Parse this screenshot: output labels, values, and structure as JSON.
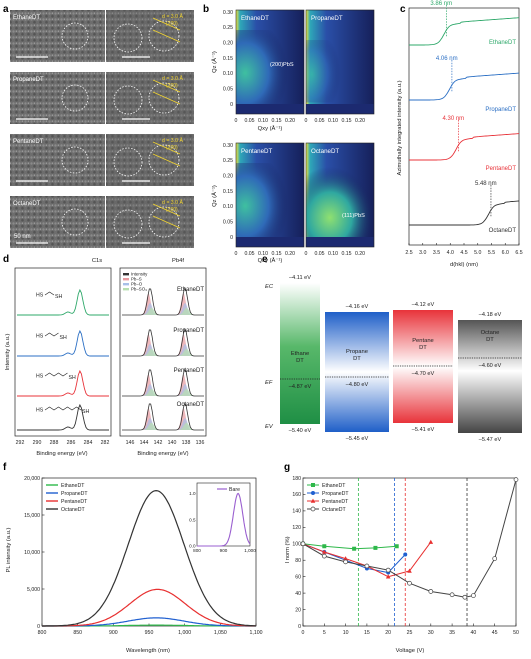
{
  "panels": {
    "a": {
      "letter": "a",
      "rows": [
        {
          "name": "EthaneDT",
          "d_label": "d = 3.0 Å",
          "plane": "(200)"
        },
        {
          "name": "PropaneDT",
          "d_label": "d = 3.0 Å",
          "plane": "(200)"
        },
        {
          "name": "PentaneDT",
          "d_label": "d = 3.0 Å",
          "plane": "(200)"
        },
        {
          "name": "OctaneDT",
          "d_label": "d = 3.0 Å",
          "plane": "(200)"
        }
      ],
      "scale_label": "50 nm"
    },
    "b": {
      "letter": "b",
      "maps": [
        "EthaneDT",
        "PropaneDT",
        "PentaneDT",
        "OctaneDT"
      ],
      "annot_top": "(200)PbS",
      "annot_bottom": "(111)PbS",
      "ylabel": "Qz (Å⁻¹)",
      "xlabel": "Qxy (Å⁻¹)",
      "yticks": [
        "0",
        "0.05",
        "0.10",
        "0.15",
        "0.20",
        "0.25",
        "0.30"
      ],
      "xticks": [
        "0",
        "0.05",
        "0.10",
        "0.15",
        "0.20"
      ]
    },
    "c": {
      "letter": "c",
      "ylabel": "Azimuthally integrated intensity (a.u.)",
      "xlabel": "d(hkl) (nm)",
      "xticks": [
        "2.5",
        "3.0",
        "3.5",
        "4.0",
        "4.5",
        "5.0",
        "5.5",
        "6.0",
        "6.5"
      ],
      "curves": [
        {
          "name": "EthaneDT",
          "peak": "3.86 nm",
          "color": "#2ea86a"
        },
        {
          "name": "PropaneDT",
          "peak": "4.06 nm",
          "color": "#2b6fc4"
        },
        {
          "name": "PentaneDT",
          "peak": "4.30 nm",
          "color": "#e8333a"
        },
        {
          "name": "OctaneDT",
          "peak": "5.48 nm",
          "color": "#333333"
        }
      ]
    },
    "d": {
      "letter": "d",
      "c1s_title": "C1s",
      "pb4f_title": "Pb4f",
      "ylabel": "Intensity (a.u.)",
      "xlabel": "Binding energy (eV)",
      "c1s_xticks": [
        "292",
        "290",
        "288",
        "286",
        "284",
        "282"
      ],
      "pb4f_xticks": [
        "146",
        "144",
        "142",
        "140",
        "138",
        "136"
      ],
      "samples": [
        "EthaneDT",
        "PropaneDT",
        "PentaneDT",
        "OctaneDT"
      ],
      "hs": "HS",
      "sh": "SH",
      "legend": [
        "Intensity",
        "Pb–S",
        "Pb–O",
        "Pb–SO₃"
      ]
    },
    "e": {
      "letter": "e",
      "ec": "EC",
      "ef": "EF",
      "ev": "EV",
      "bars": [
        {
          "name1": "Ethane",
          "name2": "DT",
          "ec": "–4.11 eV",
          "ef": "–4.87 eV",
          "ev": "–5.40 eV",
          "color": "#3aaa5a"
        },
        {
          "name1": "Propane",
          "name2": "DT",
          "ec": "–4.16 eV",
          "ef": "–4.80 eV",
          "ev": "–5.45 eV",
          "color": "#2b72c8"
        },
        {
          "name1": "Pentane",
          "name2": "DT",
          "ec": "–4.12 eV",
          "ef": "–4.70 eV",
          "ev": "–5.41 eV",
          "color": "#e8333a"
        },
        {
          "name1": "Octane",
          "name2": "DT",
          "ec": "–4.18 eV",
          "ef": "–4.60 eV",
          "ev": "–5.47 eV",
          "color": "#666666"
        }
      ]
    },
    "f": {
      "letter": "f",
      "ylabel": "PL intensity (a.u.)",
      "xlabel": "Wavelength (nm)",
      "inset_label": "Bare",
      "legend": [
        "EthaneDT",
        "PropaneDT",
        "PentaneDT",
        "OctaneDT"
      ]
    },
    "g": {
      "letter": "g",
      "ylabel": "I norm (%)",
      "xlabel": "Voltage (V)",
      "legend": [
        "EthaneDT",
        "PropaneDT",
        "PentaneDT",
        "OctaneDT"
      ]
    }
  },
  "chart_data": [
    {
      "type": "line",
      "panel": "f",
      "xlabel": "Wavelength (nm)",
      "ylabel": "PL intensity (a.u.)",
      "xlim": [
        800,
        1100
      ],
      "ylim": [
        0,
        20000
      ],
      "xticks": [
        800,
        850,
        900,
        950,
        1000,
        1050,
        1100
      ],
      "yticks": [
        0,
        5000,
        10000,
        15000,
        20000
      ],
      "series": [
        {
          "name": "EthaneDT",
          "color": "#2eb84a",
          "peak": 120,
          "center": 960,
          "width": 55
        },
        {
          "name": "PropaneDT",
          "color": "#1f5fd0",
          "peak": 1100,
          "center": 960,
          "width": 55
        },
        {
          "name": "PentaneDT",
          "color": "#e83030",
          "peak": 4950,
          "center": 962,
          "width": 55
        },
        {
          "name": "OctaneDT",
          "color": "#333333",
          "peak": 18300,
          "center": 960,
          "width": 55
        }
      ],
      "inset": {
        "name": "Bare",
        "color": "#9a5fd0",
        "xlim": [
          800,
          1000
        ],
        "ylim": [
          0,
          1.2
        ],
        "xticks": [
          800,
          900,
          1000
        ],
        "yticks": [
          0,
          0.5,
          1.0
        ],
        "center": 955,
        "width": 25,
        "peak": 1.0
      }
    },
    {
      "type": "line",
      "panel": "g",
      "xlabel": "Voltage (V)",
      "ylabel": "I norm (%)",
      "xlim": [
        0,
        50
      ],
      "ylim": [
        0,
        180
      ],
      "xticks": [
        0,
        5,
        10,
        15,
        20,
        25,
        30,
        35,
        40,
        45,
        50
      ],
      "yticks": [
        0,
        20,
        40,
        60,
        80,
        100,
        120,
        140,
        160,
        180
      ],
      "vlines": [
        {
          "x": 13,
          "color": "#2eb84a"
        },
        {
          "x": 21.5,
          "color": "#1f5fd0"
        },
        {
          "x": 24,
          "color": "#e83030"
        },
        {
          "x": 38.5,
          "color": "#333333"
        }
      ],
      "series": [
        {
          "name": "EthaneDT",
          "color": "#2eb84a",
          "marker": "square",
          "x": [
            0,
            5,
            12,
            17,
            22
          ],
          "y": [
            100,
            97,
            94,
            95,
            97
          ]
        },
        {
          "name": "PropaneDT",
          "color": "#1f5fd0",
          "marker": "circle",
          "x": [
            0,
            5,
            10,
            15,
            20,
            24
          ],
          "y": [
            100,
            90,
            80,
            70,
            65,
            87
          ]
        },
        {
          "name": "PentaneDT",
          "color": "#e83030",
          "marker": "triangle",
          "x": [
            0,
            5,
            10,
            15,
            20,
            25,
            30
          ],
          "y": [
            100,
            90,
            82,
            73,
            60,
            67,
            102
          ]
        },
        {
          "name": "OctaneDT",
          "color": "#444444",
          "marker": "open-circle",
          "x": [
            0,
            5,
            10,
            15,
            20,
            25,
            30,
            35,
            38,
            40,
            45,
            50
          ],
          "y": [
            100,
            85,
            78,
            73,
            68,
            52,
            42,
            38,
            35,
            37,
            82,
            178
          ]
        }
      ]
    }
  ]
}
